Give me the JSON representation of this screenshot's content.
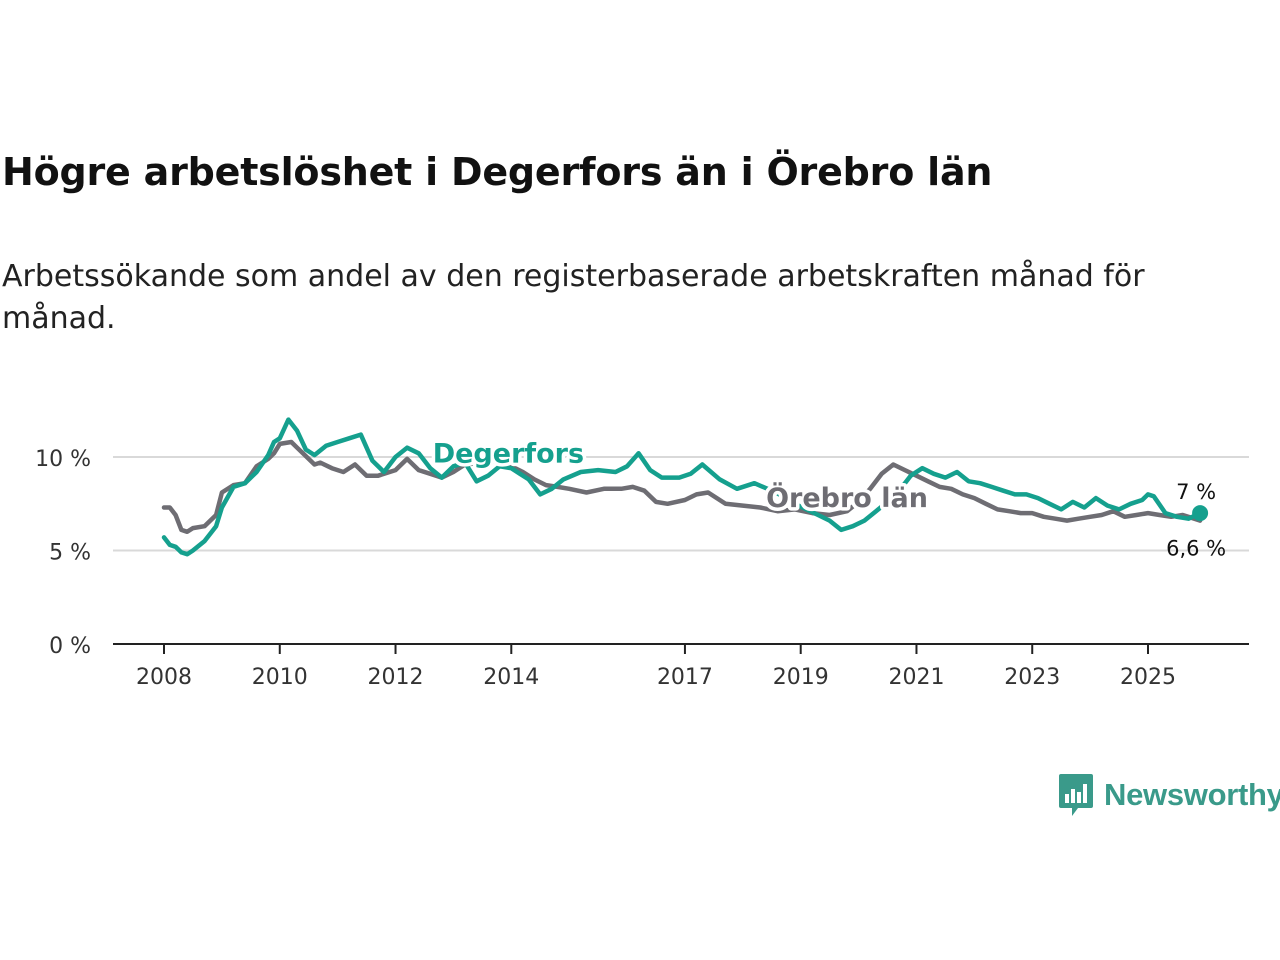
{
  "chart_data": {
    "type": "line",
    "title": "Högre arbetslöshet i Degerfors än i Örebro län",
    "subtitle": "Arbetssökande som andel av den registerbaserade arbetskraften månad för månad.",
    "ylim": [
      0,
      12.5
    ],
    "yticks": [
      {
        "value": 0,
        "label": "0 %"
      },
      {
        "value": 5,
        "label": "5 %"
      },
      {
        "value": 10,
        "label": "10 %"
      }
    ],
    "xlim": [
      2007.5,
      2026.6
    ],
    "xticks": [
      {
        "value": 2008,
        "label": "2008"
      },
      {
        "value": 2010,
        "label": "2010"
      },
      {
        "value": 2012,
        "label": "2012"
      },
      {
        "value": 2014,
        "label": "2014"
      },
      {
        "value": 2017,
        "label": "2017"
      },
      {
        "value": 2019,
        "label": "2019"
      },
      {
        "value": 2021,
        "label": "2021"
      },
      {
        "value": 2023,
        "label": "2023"
      },
      {
        "value": 2025,
        "label": "2025"
      }
    ],
    "series": [
      {
        "name": "Örebro län",
        "color": "#6e6d73",
        "end_label": "6,6 %",
        "x": [
          2008.0,
          2008.1,
          2008.2,
          2008.3,
          2008.4,
          2008.5,
          2008.7,
          2008.9,
          2009.0,
          2009.2,
          2009.4,
          2009.6,
          2009.8,
          2009.9,
          2010.0,
          2010.2,
          2010.3,
          2010.4,
          2010.6,
          2010.7,
          2010.9,
          2011.1,
          2011.3,
          2011.5,
          2011.7,
          2012.0,
          2012.2,
          2012.4,
          2012.6,
          2012.8,
          2013.0,
          2013.2,
          2013.5,
          2013.8,
          2014.0,
          2014.2,
          2014.4,
          2014.6,
          2014.8,
          2015.0,
          2015.3,
          2015.6,
          2015.9,
          2016.1,
          2016.3,
          2016.5,
          2016.7,
          2017.0,
          2017.2,
          2017.4,
          2017.7,
          2018.0,
          2018.3,
          2018.6,
          2018.9,
          2019.2,
          2019.5,
          2019.8,
          2020.0,
          2020.2,
          2020.4,
          2020.6,
          2020.8,
          2021.0,
          2021.2,
          2021.4,
          2021.6,
          2021.8,
          2022.0,
          2022.2,
          2022.4,
          2022.6,
          2022.8,
          2023.0,
          2023.2,
          2023.4,
          2023.6,
          2023.8,
          2024.0,
          2024.2,
          2024.4,
          2024.6,
          2024.8,
          2025.0,
          2025.2,
          2025.4,
          2025.6,
          2025.8,
          2025.9
        ],
        "values": [
          7.3,
          7.3,
          6.9,
          6.1,
          6.0,
          6.2,
          6.3,
          6.9,
          8.1,
          8.5,
          8.6,
          9.5,
          9.9,
          10.2,
          10.7,
          10.8,
          10.5,
          10.2,
          9.6,
          9.7,
          9.4,
          9.2,
          9.6,
          9.0,
          9.0,
          9.3,
          9.9,
          9.3,
          9.1,
          8.9,
          9.2,
          9.6,
          9.7,
          9.8,
          9.5,
          9.2,
          8.8,
          8.5,
          8.4,
          8.3,
          8.1,
          8.3,
          8.3,
          8.4,
          8.2,
          7.6,
          7.5,
          7.7,
          8.0,
          8.1,
          7.5,
          7.4,
          7.3,
          7.1,
          7.2,
          7.0,
          6.9,
          7.1,
          7.6,
          8.3,
          9.1,
          9.6,
          9.3,
          9.0,
          8.7,
          8.4,
          8.3,
          8.0,
          7.8,
          7.5,
          7.2,
          7.1,
          7.0,
          7.0,
          6.8,
          6.7,
          6.6,
          6.7,
          6.8,
          6.9,
          7.1,
          6.8,
          6.9,
          7.0,
          6.9,
          6.8,
          6.9,
          6.7,
          6.6
        ]
      },
      {
        "name": "Degerfors",
        "color": "#15a08e",
        "end_label": "7 %",
        "x": [
          2008.0,
          2008.1,
          2008.2,
          2008.3,
          2008.4,
          2008.5,
          2008.7,
          2008.9,
          2009.0,
          2009.2,
          2009.4,
          2009.6,
          2009.8,
          2009.9,
          2010.0,
          2010.15,
          2010.3,
          2010.45,
          2010.6,
          2010.8,
          2011.0,
          2011.2,
          2011.4,
          2011.6,
          2011.8,
          2012.0,
          2012.2,
          2012.4,
          2012.6,
          2012.8,
          2013.0,
          2013.2,
          2013.4,
          2013.6,
          2013.8,
          2014.0,
          2014.15,
          2014.3,
          2014.5,
          2014.7,
          2014.9,
          2015.2,
          2015.5,
          2015.8,
          2016.0,
          2016.2,
          2016.4,
          2016.6,
          2016.9,
          2017.1,
          2017.3,
          2017.6,
          2017.9,
          2018.2,
          2018.5,
          2018.7,
          2018.9,
          2019.1,
          2019.3,
          2019.5,
          2019.7,
          2019.9,
          2020.1,
          2020.3,
          2020.5,
          2020.7,
          2020.9,
          2021.1,
          2021.3,
          2021.5,
          2021.7,
          2021.9,
          2022.1,
          2022.3,
          2022.5,
          2022.7,
          2022.9,
          2023.1,
          2023.3,
          2023.5,
          2023.7,
          2023.9,
          2024.1,
          2024.3,
          2024.5,
          2024.7,
          2024.9,
          2025.0,
          2025.1,
          2025.3,
          2025.5,
          2025.7,
          2025.9
        ],
        "values": [
          5.7,
          5.3,
          5.2,
          4.9,
          4.8,
          5.0,
          5.5,
          6.3,
          7.3,
          8.4,
          8.6,
          9.2,
          10.1,
          10.8,
          11.0,
          12.0,
          11.4,
          10.4,
          10.1,
          10.6,
          10.8,
          11.0,
          11.2,
          9.8,
          9.2,
          10.0,
          10.5,
          10.2,
          9.4,
          8.9,
          9.5,
          9.7,
          8.7,
          9.0,
          9.5,
          9.4,
          9.1,
          8.8,
          8.0,
          8.3,
          8.8,
          9.2,
          9.3,
          9.2,
          9.5,
          10.2,
          9.3,
          8.9,
          8.9,
          9.1,
          9.6,
          8.8,
          8.3,
          8.6,
          8.2,
          7.9,
          7.5,
          7.2,
          6.9,
          6.6,
          6.1,
          6.3,
          6.6,
          7.1,
          7.6,
          8.2,
          9.0,
          9.4,
          9.1,
          8.9,
          9.2,
          8.7,
          8.6,
          8.4,
          8.2,
          8.0,
          8.0,
          7.8,
          7.5,
          7.2,
          7.6,
          7.3,
          7.8,
          7.4,
          7.2,
          7.5,
          7.7,
          8.0,
          7.9,
          7.0,
          6.8,
          6.7,
          7.0
        ]
      }
    ],
    "series_labels": [
      {
        "name": "Degerfors",
        "x": 2013.95,
        "y": 10.2
      },
      {
        "name": "Örebro län",
        "x": 2019.8,
        "y": 7.8
      }
    ]
  },
  "brand": {
    "name": "Newsworthy",
    "icon": "newsworthy-logo-icon"
  }
}
